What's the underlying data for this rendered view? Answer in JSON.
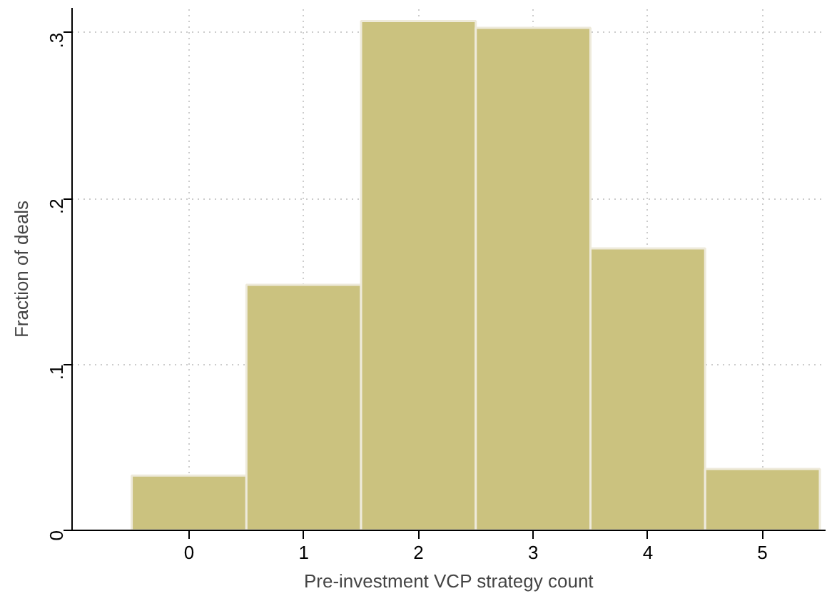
{
  "chart_data": {
    "type": "histogram",
    "xlabel": "Pre-investment VCP strategy count",
    "ylabel": "Fraction of deals",
    "bins": [
      -0.5,
      0.5,
      1.5,
      2.5,
      3.5,
      4.5,
      5.5
    ],
    "values": [
      0.033,
      0.148,
      0.307,
      0.303,
      0.17,
      0.037
    ],
    "color": "#cbc27f",
    "xlim": [
      -1.02,
      5.55
    ],
    "ylim": [
      0,
      0.315
    ],
    "xticks": [
      0,
      1,
      2,
      3,
      4,
      5
    ],
    "yticks": [
      {
        "value": 0,
        "label": "0"
      },
      {
        "value": 0.1,
        "label": ".1"
      },
      {
        "value": 0.2,
        "label": ".2"
      },
      {
        "value": 0.3,
        "label": ".3"
      }
    ],
    "grid": true
  }
}
